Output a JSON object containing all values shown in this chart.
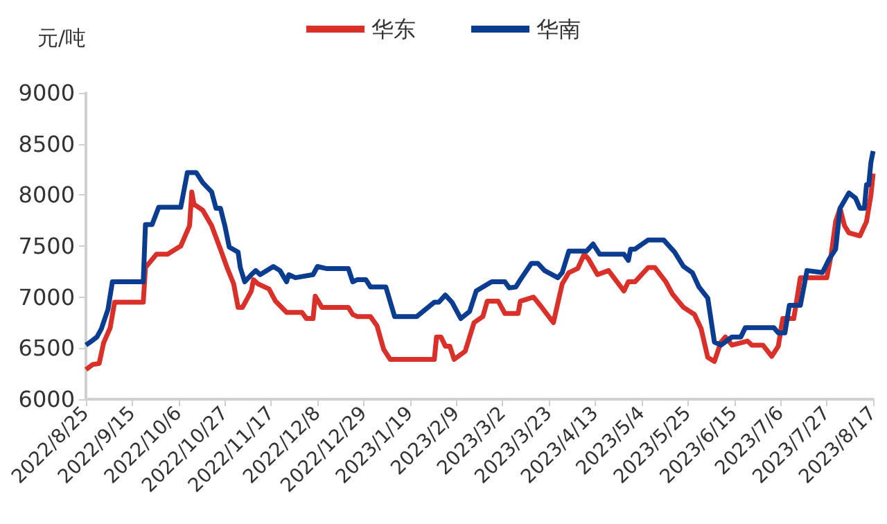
{
  "chart_data": {
    "type": "line",
    "ylabel": "元/吨",
    "legend": "top",
    "grid": false,
    "marker": "none",
    "line_style": "solid",
    "xlim": [
      "2022-08-25",
      "2023-08-17"
    ],
    "ylim": [
      6000,
      9000
    ],
    "yticks": [
      6000,
      6500,
      7000,
      7500,
      8000,
      8500,
      9000
    ],
    "xticks": [
      {
        "value": "2022-08-25",
        "label": "2022/8/25"
      },
      {
        "value": "2022-09-15",
        "label": "2022/9/15"
      },
      {
        "value": "2022-10-06",
        "label": "2022/10/6"
      },
      {
        "value": "2022-10-27",
        "label": "2022/10/27"
      },
      {
        "value": "2022-11-17",
        "label": "2022/11/17"
      },
      {
        "value": "2022-12-08",
        "label": "2022/12/8"
      },
      {
        "value": "2022-12-29",
        "label": "2022/12/29"
      },
      {
        "value": "2023-01-19",
        "label": "2023/1/19"
      },
      {
        "value": "2023-02-09",
        "label": "2023/2/9"
      },
      {
        "value": "2023-03-02",
        "label": "2023/3/2"
      },
      {
        "value": "2023-03-23",
        "label": "2023/3/23"
      },
      {
        "value": "2023-04-13",
        "label": "2023/4/13"
      },
      {
        "value": "2023-05-04",
        "label": "2023/5/4"
      },
      {
        "value": "2023-05-25",
        "label": "2023/5/25"
      },
      {
        "value": "2023-06-15",
        "label": "2023/6/15"
      },
      {
        "value": "2023-07-06",
        "label": "2023/7/6"
      },
      {
        "value": "2023-07-27",
        "label": "2023/7/27"
      },
      {
        "value": "2023-08-17",
        "label": "2023/8/17"
      }
    ],
    "series": [
      {
        "name": "华东",
        "color": "#d9302a",
        "x": [
          "2022-08-25",
          "2022-08-28",
          "2022-08-31",
          "2022-09-02",
          "2022-09-05",
          "2022-09-07",
          "2022-09-20",
          "2022-09-21",
          "2022-09-26",
          "2022-10-01",
          "2022-10-07",
          "2022-10-11",
          "2022-10-12",
          "2022-10-13",
          "2022-10-17",
          "2022-10-21",
          "2022-10-25",
          "2022-10-28",
          "2022-10-31",
          "2022-11-02",
          "2022-11-04",
          "2022-11-08",
          "2022-11-09",
          "2022-11-11",
          "2022-11-16",
          "2022-11-19",
          "2022-11-24",
          "2022-12-01",
          "2022-12-03",
          "2022-12-06",
          "2022-12-07",
          "2022-12-10",
          "2022-12-22",
          "2022-12-24",
          "2022-12-26",
          "2023-01-01",
          "2023-01-04",
          "2023-01-07",
          "2023-01-10",
          "2023-01-30",
          "2023-01-31",
          "2023-02-02",
          "2023-02-04",
          "2023-02-06",
          "2023-02-08",
          "2023-02-13",
          "2023-02-17",
          "2023-02-21",
          "2023-02-23",
          "2023-02-28",
          "2023-03-03",
          "2023-03-09",
          "2023-03-10",
          "2023-03-16",
          "2023-03-19",
          "2023-03-25",
          "2023-03-29",
          "2023-04-01",
          "2023-04-05",
          "2023-04-08",
          "2023-04-10",
          "2023-04-14",
          "2023-04-19",
          "2023-04-26",
          "2023-04-28",
          "2023-05-01",
          "2023-05-07",
          "2023-05-10",
          "2023-05-15",
          "2023-05-18",
          "2023-05-23",
          "2023-05-28",
          "2023-05-31",
          "2023-06-03",
          "2023-06-06",
          "2023-06-09",
          "2023-06-11",
          "2023-06-14",
          "2023-06-21",
          "2023-06-23",
          "2023-06-28",
          "2023-07-02",
          "2023-07-05",
          "2023-07-07",
          "2023-07-12",
          "2023-07-15",
          "2023-07-27",
          "2023-07-29",
          "2023-07-31",
          "2023-08-02",
          "2023-08-04",
          "2023-08-06",
          "2023-08-11",
          "2023-08-14",
          "2023-08-16",
          "2023-08-17"
        ],
        "values": [
          6290,
          6340,
          6350,
          6550,
          6700,
          6950,
          6950,
          7290,
          7420,
          7420,
          7500,
          7700,
          8030,
          7910,
          7850,
          7700,
          7470,
          7290,
          7130,
          6900,
          6900,
          7060,
          7170,
          7130,
          7080,
          6960,
          6850,
          6850,
          6790,
          6790,
          7010,
          6900,
          6900,
          6830,
          6810,
          6810,
          6720,
          6490,
          6390,
          6390,
          6610,
          6610,
          6520,
          6520,
          6390,
          6470,
          6750,
          6810,
          6960,
          6960,
          6840,
          6840,
          6960,
          7000,
          6920,
          6750,
          7130,
          7240,
          7280,
          7420,
          7370,
          7220,
          7260,
          7060,
          7150,
          7150,
          7290,
          7290,
          7150,
          7030,
          6900,
          6830,
          6690,
          6410,
          6370,
          6560,
          6610,
          6530,
          6570,
          6530,
          6530,
          6420,
          6520,
          6790,
          6790,
          7190,
          7190,
          7420,
          7740,
          7870,
          7700,
          7630,
          7600,
          7740,
          8000,
          8210
        ]
      },
      {
        "name": "华南",
        "color": "#0a3d8f",
        "x": [
          "2022-08-25",
          "2022-08-27",
          "2022-08-30",
          "2022-09-01",
          "2022-09-04",
          "2022-09-06",
          "2022-09-20",
          "2022-09-21",
          "2022-09-24",
          "2022-09-27",
          "2022-10-07",
          "2022-10-10",
          "2022-10-14",
          "2022-10-17",
          "2022-10-21",
          "2022-10-23",
          "2022-10-25",
          "2022-10-27",
          "2022-10-29",
          "2022-11-02",
          "2022-11-03",
          "2022-11-05",
          "2022-11-08",
          "2022-11-10",
          "2022-11-12",
          "2022-11-18",
          "2022-11-21",
          "2022-11-24",
          "2022-11-25",
          "2022-11-28",
          "2022-12-06",
          "2022-12-08",
          "2022-12-12",
          "2022-12-22",
          "2022-12-24",
          "2022-12-26",
          "2022-12-30",
          "2023-01-01",
          "2023-01-08",
          "2023-01-12",
          "2023-01-22",
          "2023-01-30",
          "2023-02-01",
          "2023-02-04",
          "2023-02-07",
          "2023-02-11",
          "2023-02-15",
          "2023-02-18",
          "2023-02-25",
          "2023-03-03",
          "2023-03-05",
          "2023-03-08",
          "2023-03-10",
          "2023-03-15",
          "2023-03-18",
          "2023-03-21",
          "2023-03-27",
          "2023-03-29",
          "2023-04-01",
          "2023-04-09",
          "2023-04-12",
          "2023-04-15",
          "2023-04-26",
          "2023-04-28",
          "2023-04-29",
          "2023-05-01",
          "2023-05-07",
          "2023-05-14",
          "2023-05-19",
          "2023-05-23",
          "2023-05-27",
          "2023-05-30",
          "2023-06-03",
          "2023-06-06",
          "2023-06-09",
          "2023-06-14",
          "2023-06-18",
          "2023-06-20",
          "2023-07-03",
          "2023-07-05",
          "2023-07-08",
          "2023-07-10",
          "2023-07-15",
          "2023-07-18",
          "2023-07-25",
          "2023-07-28",
          "2023-07-31",
          "2023-08-02",
          "2023-08-06",
          "2023-08-09",
          "2023-08-11",
          "2023-08-13",
          "2023-08-14",
          "2023-08-15",
          "2023-08-16",
          "2023-08-17"
        ],
        "values": [
          6530,
          6560,
          6610,
          6690,
          6880,
          7150,
          7150,
          7710,
          7710,
          7880,
          7880,
          8220,
          8220,
          8120,
          8030,
          7870,
          7870,
          7700,
          7490,
          7440,
          7290,
          7150,
          7220,
          7260,
          7220,
          7300,
          7260,
          7150,
          7220,
          7190,
          7220,
          7300,
          7280,
          7280,
          7150,
          7170,
          7170,
          7100,
          7100,
          6810,
          6810,
          6950,
          6950,
          7020,
          6950,
          6790,
          6860,
          7060,
          7150,
          7150,
          7090,
          7100,
          7170,
          7330,
          7330,
          7260,
          7190,
          7240,
          7450,
          7450,
          7520,
          7420,
          7420,
          7360,
          7470,
          7470,
          7560,
          7560,
          7440,
          7300,
          7240,
          7100,
          6990,
          6560,
          6530,
          6610,
          6610,
          6700,
          6700,
          6650,
          6650,
          6920,
          6920,
          7260,
          7240,
          7370,
          7470,
          7870,
          8020,
          7970,
          7870,
          7870,
          8100,
          8100,
          8320,
          8430
        ]
      }
    ]
  }
}
